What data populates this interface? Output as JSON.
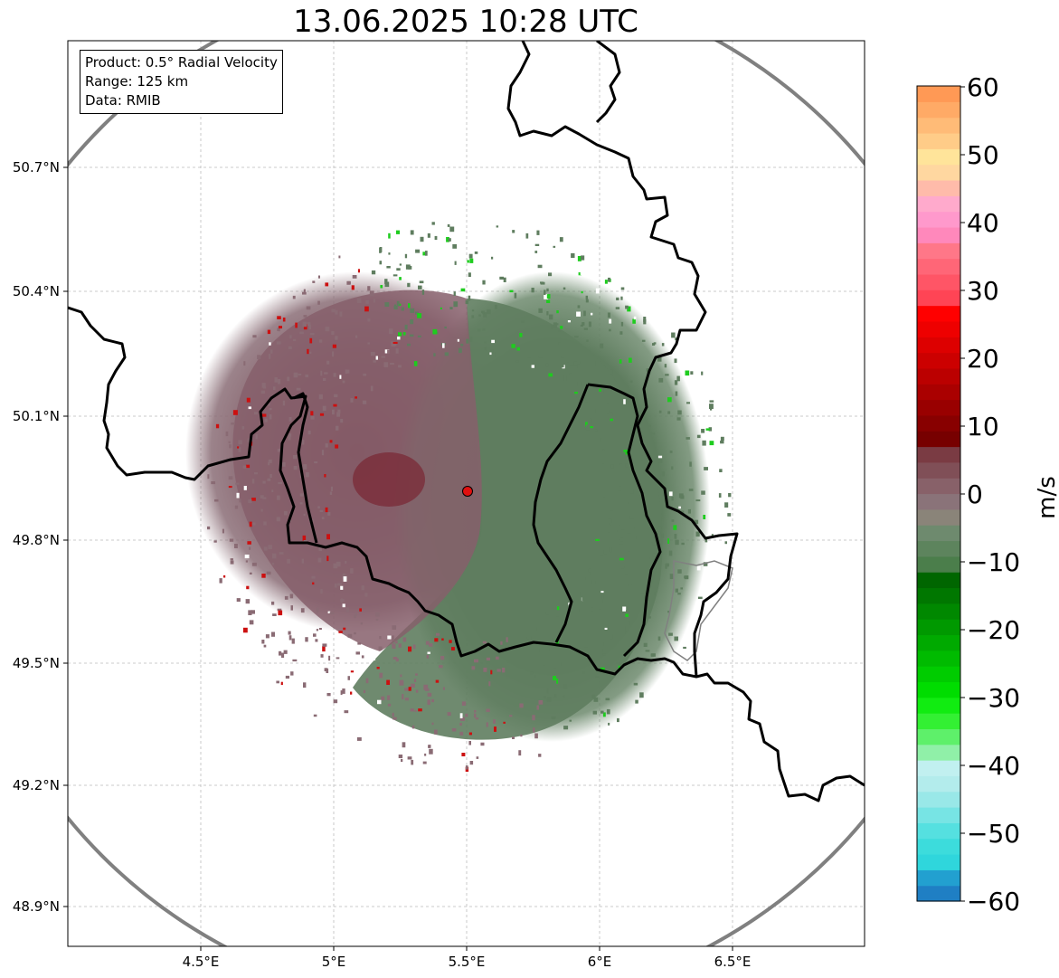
{
  "title": "13.06.2025 10:28 UTC",
  "info": {
    "product": "Product: 0.5° Radial Velocity",
    "range": "Range: 125 km",
    "data": "Data: RMIB"
  },
  "axes": {
    "lon_ticks": [
      "4.5°E",
      "5°E",
      "5.5°E",
      "6°E",
      "6.5°E"
    ],
    "lat_ticks": [
      "50.7°N",
      "50.4°N",
      "50.1°N",
      "49.8°N",
      "49.5°N",
      "49.2°N",
      "48.9°N"
    ]
  },
  "radar_site": {
    "lon": 5.505,
    "lat": 49.914
  },
  "colorbar": {
    "label": "m/s",
    "min": -60,
    "max": 60,
    "ticks": [
      "60",
      "50",
      "40",
      "30",
      "20",
      "10",
      "0",
      "−10",
      "−20",
      "−30",
      "−40",
      "−50",
      "−60"
    ],
    "colors": [
      "#1f7fc4",
      "#22a0d0",
      "#2fd6dc",
      "#3cdcdc",
      "#55e0e0",
      "#77e4e4",
      "#99e8e8",
      "#b3ecec",
      "#c1f0f0",
      "#90f0a8",
      "#5ef06a",
      "#33f033",
      "#11ec11",
      "#00dd00",
      "#00cc00",
      "#00bb00",
      "#00aa00",
      "#009900",
      "#008800",
      "#007700",
      "#006600",
      "#4b7e4b",
      "#5d845d",
      "#6e8a6e",
      "#8a8479",
      "#8a7379",
      "#886169",
      "#804f57",
      "#7a3b43",
      "#770000",
      "#880000",
      "#990000",
      "#aa0000",
      "#bb0000",
      "#cc0000",
      "#dd0000",
      "#ee0000",
      "#ff0000",
      "#ff4455",
      "#ff5566",
      "#ff6677",
      "#ff7788",
      "#ff88bb",
      "#ff99cc",
      "#ffaacc",
      "#ffbbaa",
      "#ffd7a0",
      "#ffe49a",
      "#ffcc88",
      "#ffbb77",
      "#ffaa66",
      "#ff9955"
    ]
  },
  "colors": {
    "inbound": "#5f7d5f",
    "outbound": "#866a72",
    "range_ring": "#808080"
  }
}
